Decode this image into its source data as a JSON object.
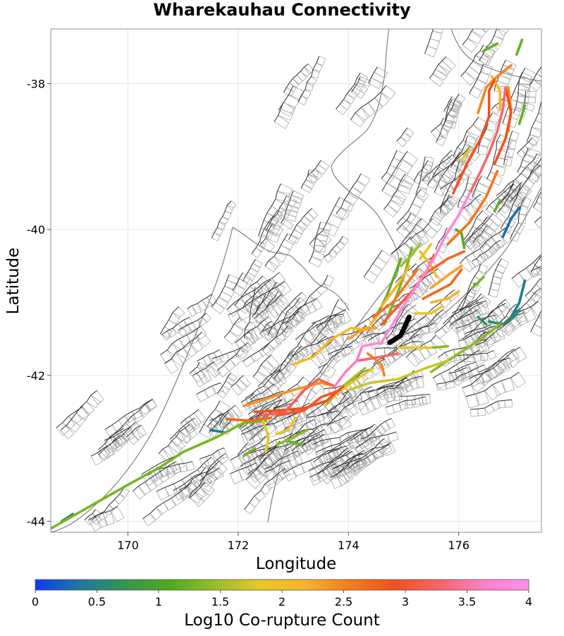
{
  "title": "Wharekauhau Connectivity",
  "chart_data": {
    "type": "map",
    "title": "Wharekauhau Connectivity",
    "xlabel": "Longitude",
    "ylabel": "Latitude",
    "xlim": [
      168.6,
      177.5
    ],
    "ylim": [
      -44.15,
      -37.25
    ],
    "xticks": [
      170,
      172,
      174,
      176
    ],
    "yticks": [
      -38,
      -40,
      -42,
      -44
    ],
    "tick_labels_x": [
      "170",
      "172",
      "174",
      "176"
    ],
    "tick_labels_y": [
      "-38",
      "-40",
      "-42",
      "-44"
    ],
    "grid": true,
    "source_fault": {
      "name": "Wharekauhau",
      "color": "#000000",
      "trace": [
        [
          174.75,
          -41.55
        ],
        [
          174.95,
          -41.45
        ],
        [
          175.1,
          -41.2
        ]
      ]
    },
    "colorbar": {
      "label": "Log10 Co-rupture Count",
      "range": [
        0,
        4
      ],
      "ticks": [
        0,
        0.5,
        1,
        1.5,
        2,
        2.5,
        3,
        3.5,
        4
      ],
      "tick_labels": [
        "0",
        "0.5",
        "1",
        "1.5",
        "2",
        "2.5",
        "3",
        "3.5",
        "4"
      ],
      "colors": [
        "#0a3cf0",
        "#1e78a0",
        "#329650",
        "#50aa1e",
        "#96be28",
        "#e6c828",
        "#fab428",
        "#f57d1e",
        "#f0501e",
        "#fa6464",
        "#ff80c8",
        "#ff90f0"
      ]
    },
    "connected_faults": [
      {
        "value": 3.8,
        "trace": [
          [
            174.25,
            -41.6
          ],
          [
            174.6,
            -41.55
          ],
          [
            174.8,
            -41.3
          ],
          [
            175.0,
            -41.05
          ],
          [
            175.3,
            -40.7
          ],
          [
            175.55,
            -40.4
          ],
          [
            175.75,
            -40.1
          ],
          [
            176.0,
            -39.8
          ],
          [
            176.2,
            -39.5
          ]
        ]
      },
      {
        "value": 3.3,
        "trace": [
          [
            176.2,
            -39.5
          ],
          [
            176.4,
            -39.2
          ],
          [
            176.55,
            -38.95
          ],
          [
            176.7,
            -38.65
          ],
          [
            176.8,
            -38.35
          ],
          [
            176.85,
            -38.05
          ]
        ]
      },
      {
        "value": 2.9,
        "trace": [
          [
            175.9,
            -39.5
          ],
          [
            176.15,
            -39.1
          ],
          [
            176.4,
            -38.75
          ],
          [
            176.55,
            -38.45
          ],
          [
            176.55,
            -38.1
          ],
          [
            176.65,
            -37.95
          ]
        ]
      },
      {
        "value": 2.5,
        "trace": [
          [
            176.35,
            -38.4
          ],
          [
            176.5,
            -38.05
          ],
          [
            176.7,
            -37.9
          ],
          [
            176.95,
            -37.75
          ]
        ]
      },
      {
        "value": 2.9,
        "trace": [
          [
            176.85,
            -38.05
          ],
          [
            176.95,
            -38.4
          ],
          [
            176.85,
            -38.75
          ],
          [
            176.65,
            -39.1
          ]
        ]
      },
      {
        "value": 2.4,
        "trace": [
          [
            176.9,
            -38.05
          ],
          [
            176.95,
            -38.35
          ],
          [
            176.9,
            -38.65
          ]
        ]
      },
      {
        "value": 2.2,
        "trace": [
          [
            176.6,
            -37.9
          ],
          [
            176.75,
            -38.1
          ],
          [
            176.75,
            -38.35
          ]
        ]
      },
      {
        "value": 2.6,
        "trace": [
          [
            175.8,
            -40.2
          ],
          [
            176.2,
            -39.9
          ],
          [
            176.5,
            -39.55
          ],
          [
            176.7,
            -39.2
          ]
        ]
      },
      {
        "value": 2.7,
        "trace": [
          [
            175.3,
            -40.65
          ],
          [
            175.8,
            -40.4
          ],
          [
            176.1,
            -40.3
          ]
        ]
      },
      {
        "value": 2.3,
        "trace": [
          [
            175.5,
            -40.8
          ],
          [
            175.85,
            -40.6
          ],
          [
            176.05,
            -40.5
          ]
        ]
      },
      {
        "value": 2.6,
        "trace": [
          [
            174.45,
            -41.2
          ],
          [
            174.8,
            -41.0
          ],
          [
            175.05,
            -40.75
          ],
          [
            175.25,
            -40.55
          ]
        ]
      },
      {
        "value": 2.2,
        "trace": [
          [
            174.6,
            -41.05
          ],
          [
            174.9,
            -40.75
          ],
          [
            175.1,
            -40.5
          ]
        ]
      },
      {
        "value": 3.1,
        "trace": [
          [
            174.6,
            -41.3
          ],
          [
            174.9,
            -41.05
          ],
          [
            175.15,
            -40.85
          ],
          [
            175.4,
            -40.6
          ],
          [
            175.55,
            -40.35
          ]
        ]
      },
      {
        "value": 2.7,
        "trace": [
          [
            175.35,
            -40.95
          ],
          [
            175.6,
            -40.85
          ],
          [
            175.85,
            -40.75
          ],
          [
            176.05,
            -40.55
          ]
        ]
      },
      {
        "value": 2.2,
        "trace": [
          [
            175.5,
            -41.0
          ],
          [
            175.8,
            -40.95
          ],
          [
            176.0,
            -40.85
          ]
        ]
      },
      {
        "value": 1.9,
        "trace": [
          [
            175.2,
            -41.15
          ],
          [
            175.5,
            -41.15
          ],
          [
            175.7,
            -41.05
          ]
        ]
      },
      {
        "value": 1.3,
        "trace": [
          [
            174.65,
            -41.3
          ],
          [
            174.85,
            -40.95
          ],
          [
            175.0,
            -40.65
          ],
          [
            175.1,
            -40.4
          ],
          [
            175.15,
            -40.25
          ]
        ]
      },
      {
        "value": 1.2,
        "trace": [
          [
            174.5,
            -41.2
          ],
          [
            174.7,
            -40.9
          ],
          [
            174.85,
            -40.6
          ],
          [
            174.95,
            -40.4
          ]
        ]
      },
      {
        "value": 1.5,
        "trace": [
          [
            174.95,
            -40.5
          ],
          [
            175.15,
            -40.35
          ],
          [
            175.3,
            -40.2
          ]
        ]
      },
      {
        "value": 1.8,
        "trace": [
          [
            175.3,
            -40.4
          ],
          [
            175.5,
            -40.2
          ]
        ]
      },
      {
        "value": 1.3,
        "trace": [
          [
            176.25,
            -40.8
          ],
          [
            176.45,
            -40.65
          ]
        ]
      },
      {
        "value": 1.8,
        "trace": [
          [
            176.05,
            -39.05
          ],
          [
            176.2,
            -38.9
          ]
        ]
      },
      {
        "value": 1.2,
        "trace": [
          [
            176.65,
            -39.75
          ],
          [
            176.75,
            -39.6
          ]
        ]
      },
      {
        "value": 1.1,
        "trace": [
          [
            175.95,
            -40.0
          ],
          [
            176.05,
            -40.05
          ],
          [
            176.1,
            -40.25
          ]
        ]
      },
      {
        "value": 2.1,
        "trace": [
          [
            175.3,
            -40.3
          ],
          [
            175.5,
            -40.5
          ],
          [
            175.6,
            -40.65
          ]
        ]
      },
      {
        "value": 2.2,
        "trace": [
          [
            174.4,
            -41.3
          ],
          [
            174.55,
            -41.15
          ]
        ]
      },
      {
        "value": 2.3,
        "trace": [
          [
            174.0,
            -41.5
          ],
          [
            174.3,
            -41.35
          ],
          [
            174.5,
            -41.35
          ]
        ]
      },
      {
        "value": 3.6,
        "trace": [
          [
            174.25,
            -41.6
          ],
          [
            174.15,
            -41.8
          ],
          [
            173.95,
            -41.95
          ],
          [
            173.75,
            -42.15
          ]
        ]
      },
      {
        "value": 3.3,
        "trace": [
          [
            174.15,
            -41.8
          ],
          [
            174.55,
            -41.75
          ],
          [
            174.9,
            -41.7
          ]
        ]
      },
      {
        "value": 2.5,
        "trace": [
          [
            174.35,
            -41.7
          ],
          [
            174.6,
            -41.85
          ],
          [
            174.65,
            -42.0
          ]
        ]
      },
      {
        "value": 1.9,
        "trace": [
          [
            174.9,
            -41.62
          ],
          [
            175.15,
            -41.62
          ],
          [
            175.5,
            -41.62
          ]
        ]
      },
      {
        "value": 1.4,
        "trace": [
          [
            175.5,
            -41.62
          ],
          [
            175.8,
            -41.6
          ]
        ]
      },
      {
        "value": 2.1,
        "trace": [
          [
            173.0,
            -41.85
          ],
          [
            173.35,
            -41.75
          ],
          [
            173.7,
            -41.5
          ],
          [
            174.05,
            -41.35
          ],
          [
            174.35,
            -41.38
          ]
        ]
      },
      {
        "value": 2.4,
        "trace": [
          [
            172.1,
            -42.42
          ],
          [
            172.6,
            -42.3
          ],
          [
            173.0,
            -42.2
          ],
          [
            173.5,
            -42.1
          ],
          [
            173.75,
            -42.15
          ]
        ]
      },
      {
        "value": 2.9,
        "trace": [
          [
            172.3,
            -42.5
          ],
          [
            172.75,
            -42.48
          ],
          [
            173.2,
            -42.45
          ],
          [
            173.6,
            -42.35
          ],
          [
            173.9,
            -42.15
          ]
        ]
      },
      {
        "value": 3.2,
        "trace": [
          [
            172.4,
            -42.55
          ],
          [
            172.85,
            -42.5
          ],
          [
            173.2,
            -42.2
          ],
          [
            173.45,
            -42.05
          ],
          [
            173.75,
            -42.15
          ]
        ]
      },
      {
        "value": 3.0,
        "trace": [
          [
            172.7,
            -42.55
          ],
          [
            173.2,
            -42.48
          ],
          [
            173.5,
            -42.3
          ],
          [
            173.85,
            -42.2
          ]
        ]
      },
      {
        "value": 2.7,
        "trace": [
          [
            171.8,
            -42.6
          ],
          [
            172.2,
            -42.62
          ],
          [
            172.6,
            -42.58
          ]
        ]
      },
      {
        "value": 1.8,
        "trace": [
          [
            174.45,
            -41.9
          ],
          [
            174.05,
            -42.1
          ],
          [
            173.7,
            -42.3
          ]
        ]
      },
      {
        "value": 1.5,
        "trace": [
          [
            173.6,
            -42.4
          ],
          [
            173.9,
            -42.15
          ],
          [
            174.3,
            -41.9
          ]
        ]
      },
      {
        "value": 1.8,
        "trace": [
          [
            172.45,
            -42.62
          ],
          [
            172.55,
            -42.85
          ],
          [
            172.5,
            -43.05
          ]
        ]
      },
      {
        "value": 1.9,
        "trace": [
          [
            173.05,
            -42.58
          ],
          [
            172.9,
            -42.75
          ],
          [
            172.7,
            -42.8
          ]
        ]
      },
      {
        "value": 1.4,
        "trace": [
          [
            172.7,
            -42.95
          ],
          [
            173.0,
            -42.85
          ],
          [
            173.25,
            -42.75
          ]
        ]
      },
      {
        "value": 1.2,
        "trace": [
          [
            172.9,
            -42.9
          ],
          [
            173.15,
            -42.95
          ]
        ]
      },
      {
        "value": 1.3,
        "trace": [
          [
            172.1,
            -43.1
          ],
          [
            172.3,
            -43.0
          ]
        ]
      },
      {
        "value": 1.3,
        "trace": [
          [
            168.6,
            -44.1
          ],
          [
            169.3,
            -43.8
          ],
          [
            170.0,
            -43.5
          ],
          [
            170.6,
            -43.25
          ],
          [
            171.0,
            -43.05
          ],
          [
            171.6,
            -42.85
          ],
          [
            172.1,
            -42.65
          ],
          [
            172.5,
            -42.62
          ]
        ]
      },
      {
        "value": 0.6,
        "trace": [
          [
            168.8,
            -44.0
          ],
          [
            169.0,
            -43.9
          ]
        ]
      },
      {
        "value": 0.4,
        "trace": [
          [
            171.5,
            -42.75
          ],
          [
            171.75,
            -42.78
          ]
        ]
      },
      {
        "value": 1.7,
        "trace": [
          [
            174.0,
            -42.2
          ],
          [
            174.4,
            -42.1
          ],
          [
            174.9,
            -42.05
          ],
          [
            175.4,
            -41.9
          ],
          [
            175.8,
            -41.8
          ]
        ]
      },
      {
        "value": 1.4,
        "trace": [
          [
            175.5,
            -41.95
          ],
          [
            176.0,
            -41.7
          ],
          [
            176.4,
            -41.5
          ],
          [
            176.75,
            -41.3
          ]
        ]
      },
      {
        "value": 0.6,
        "trace": [
          [
            176.55,
            -41.26
          ],
          [
            176.8,
            -41.3
          ],
          [
            177.0,
            -41.2
          ],
          [
            177.1,
            -41.1
          ]
        ]
      },
      {
        "value": 0.4,
        "trace": [
          [
            176.95,
            -41.2
          ],
          [
            177.1,
            -41.0
          ],
          [
            177.2,
            -40.7
          ]
        ]
      },
      {
        "value": 0.3,
        "trace": [
          [
            176.8,
            -40.1
          ],
          [
            176.95,
            -39.85
          ],
          [
            177.1,
            -39.7
          ]
        ]
      },
      {
        "value": 0.7,
        "trace": [
          [
            176.35,
            -41.2
          ],
          [
            176.5,
            -41.3
          ]
        ]
      },
      {
        "value": 1.2,
        "trace": [
          [
            177.1,
            -38.55
          ],
          [
            177.2,
            -38.3
          ]
        ]
      },
      {
        "value": 1.2,
        "trace": [
          [
            176.45,
            -37.55
          ],
          [
            176.7,
            -37.45
          ]
        ]
      },
      {
        "value": 1.2,
        "trace": [
          [
            177.05,
            -37.6
          ],
          [
            177.15,
            -37.4
          ]
        ]
      }
    ]
  }
}
